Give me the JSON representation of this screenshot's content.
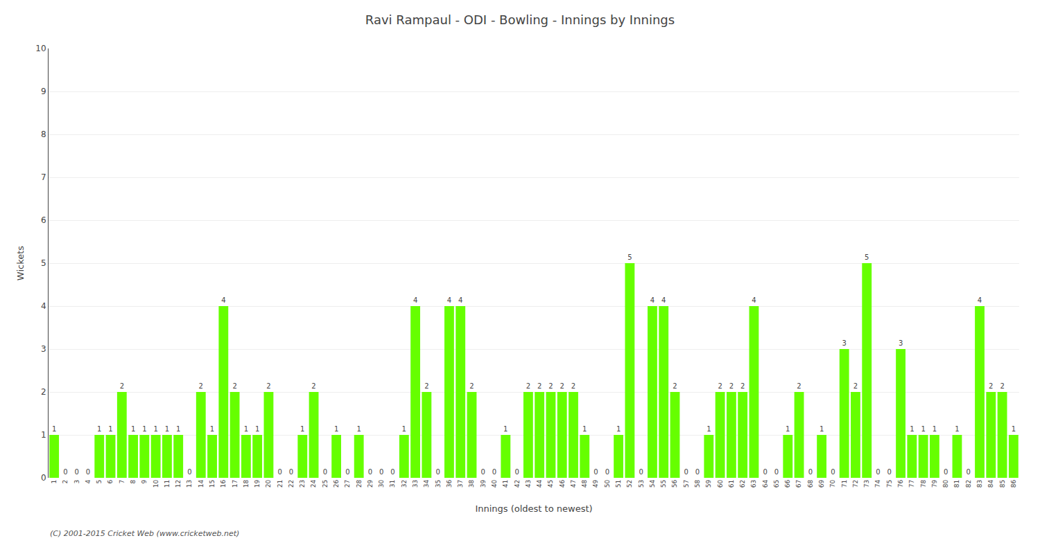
{
  "chart_data": {
    "type": "bar",
    "title": "Ravi Rampaul - ODI - Bowling - Innings by Innings",
    "xlabel": "Innings (oldest to newest)",
    "ylabel": "Wickets",
    "categories": [
      "1",
      "2",
      "3",
      "4",
      "5",
      "6",
      "7",
      "8",
      "9",
      "10",
      "11",
      "12",
      "13",
      "14",
      "15",
      "16",
      "17",
      "18",
      "19",
      "20",
      "21",
      "22",
      "23",
      "24",
      "25",
      "26",
      "27",
      "28",
      "29",
      "30",
      "31",
      "32",
      "33",
      "34",
      "35",
      "36",
      "37",
      "38",
      "39",
      "40",
      "41",
      "42",
      "43",
      "44",
      "45",
      "46",
      "47",
      "48",
      "49",
      "50",
      "51",
      "52",
      "53",
      "54",
      "55",
      "56",
      "57",
      "58",
      "59",
      "60",
      "61",
      "62",
      "63",
      "64",
      "65",
      "66",
      "67",
      "68",
      "69",
      "70",
      "71",
      "72",
      "73",
      "74",
      "75",
      "76",
      "77",
      "78",
      "79",
      "80",
      "81",
      "82",
      "83",
      "84",
      "85",
      "86"
    ],
    "values": [
      1,
      0,
      0,
      0,
      1,
      1,
      2,
      1,
      1,
      1,
      1,
      1,
      0,
      2,
      1,
      4,
      2,
      1,
      1,
      2,
      0,
      0,
      1,
      2,
      0,
      1,
      0,
      1,
      0,
      0,
      0,
      1,
      4,
      2,
      0,
      4,
      4,
      2,
      0,
      0,
      1,
      0,
      2,
      2,
      2,
      2,
      2,
      1,
      0,
      0,
      1,
      5,
      0,
      4,
      4,
      2,
      0,
      0,
      1,
      2,
      2,
      2,
      4,
      0,
      0,
      1,
      2,
      0,
      1,
      0,
      3,
      2,
      5,
      0,
      0,
      3,
      1,
      1,
      1,
      0,
      1,
      0,
      4,
      2,
      2,
      1
    ],
    "color": "#66ff00",
    "data_labels": true,
    "ylim": [
      0,
      10
    ],
    "yticks": [
      0,
      1,
      2,
      3,
      4,
      5,
      6,
      7,
      8,
      9,
      10
    ],
    "grid": true,
    "annotations": [
      "(C) 2001-2015 Cricket Web (www.cricketweb.net)"
    ]
  }
}
